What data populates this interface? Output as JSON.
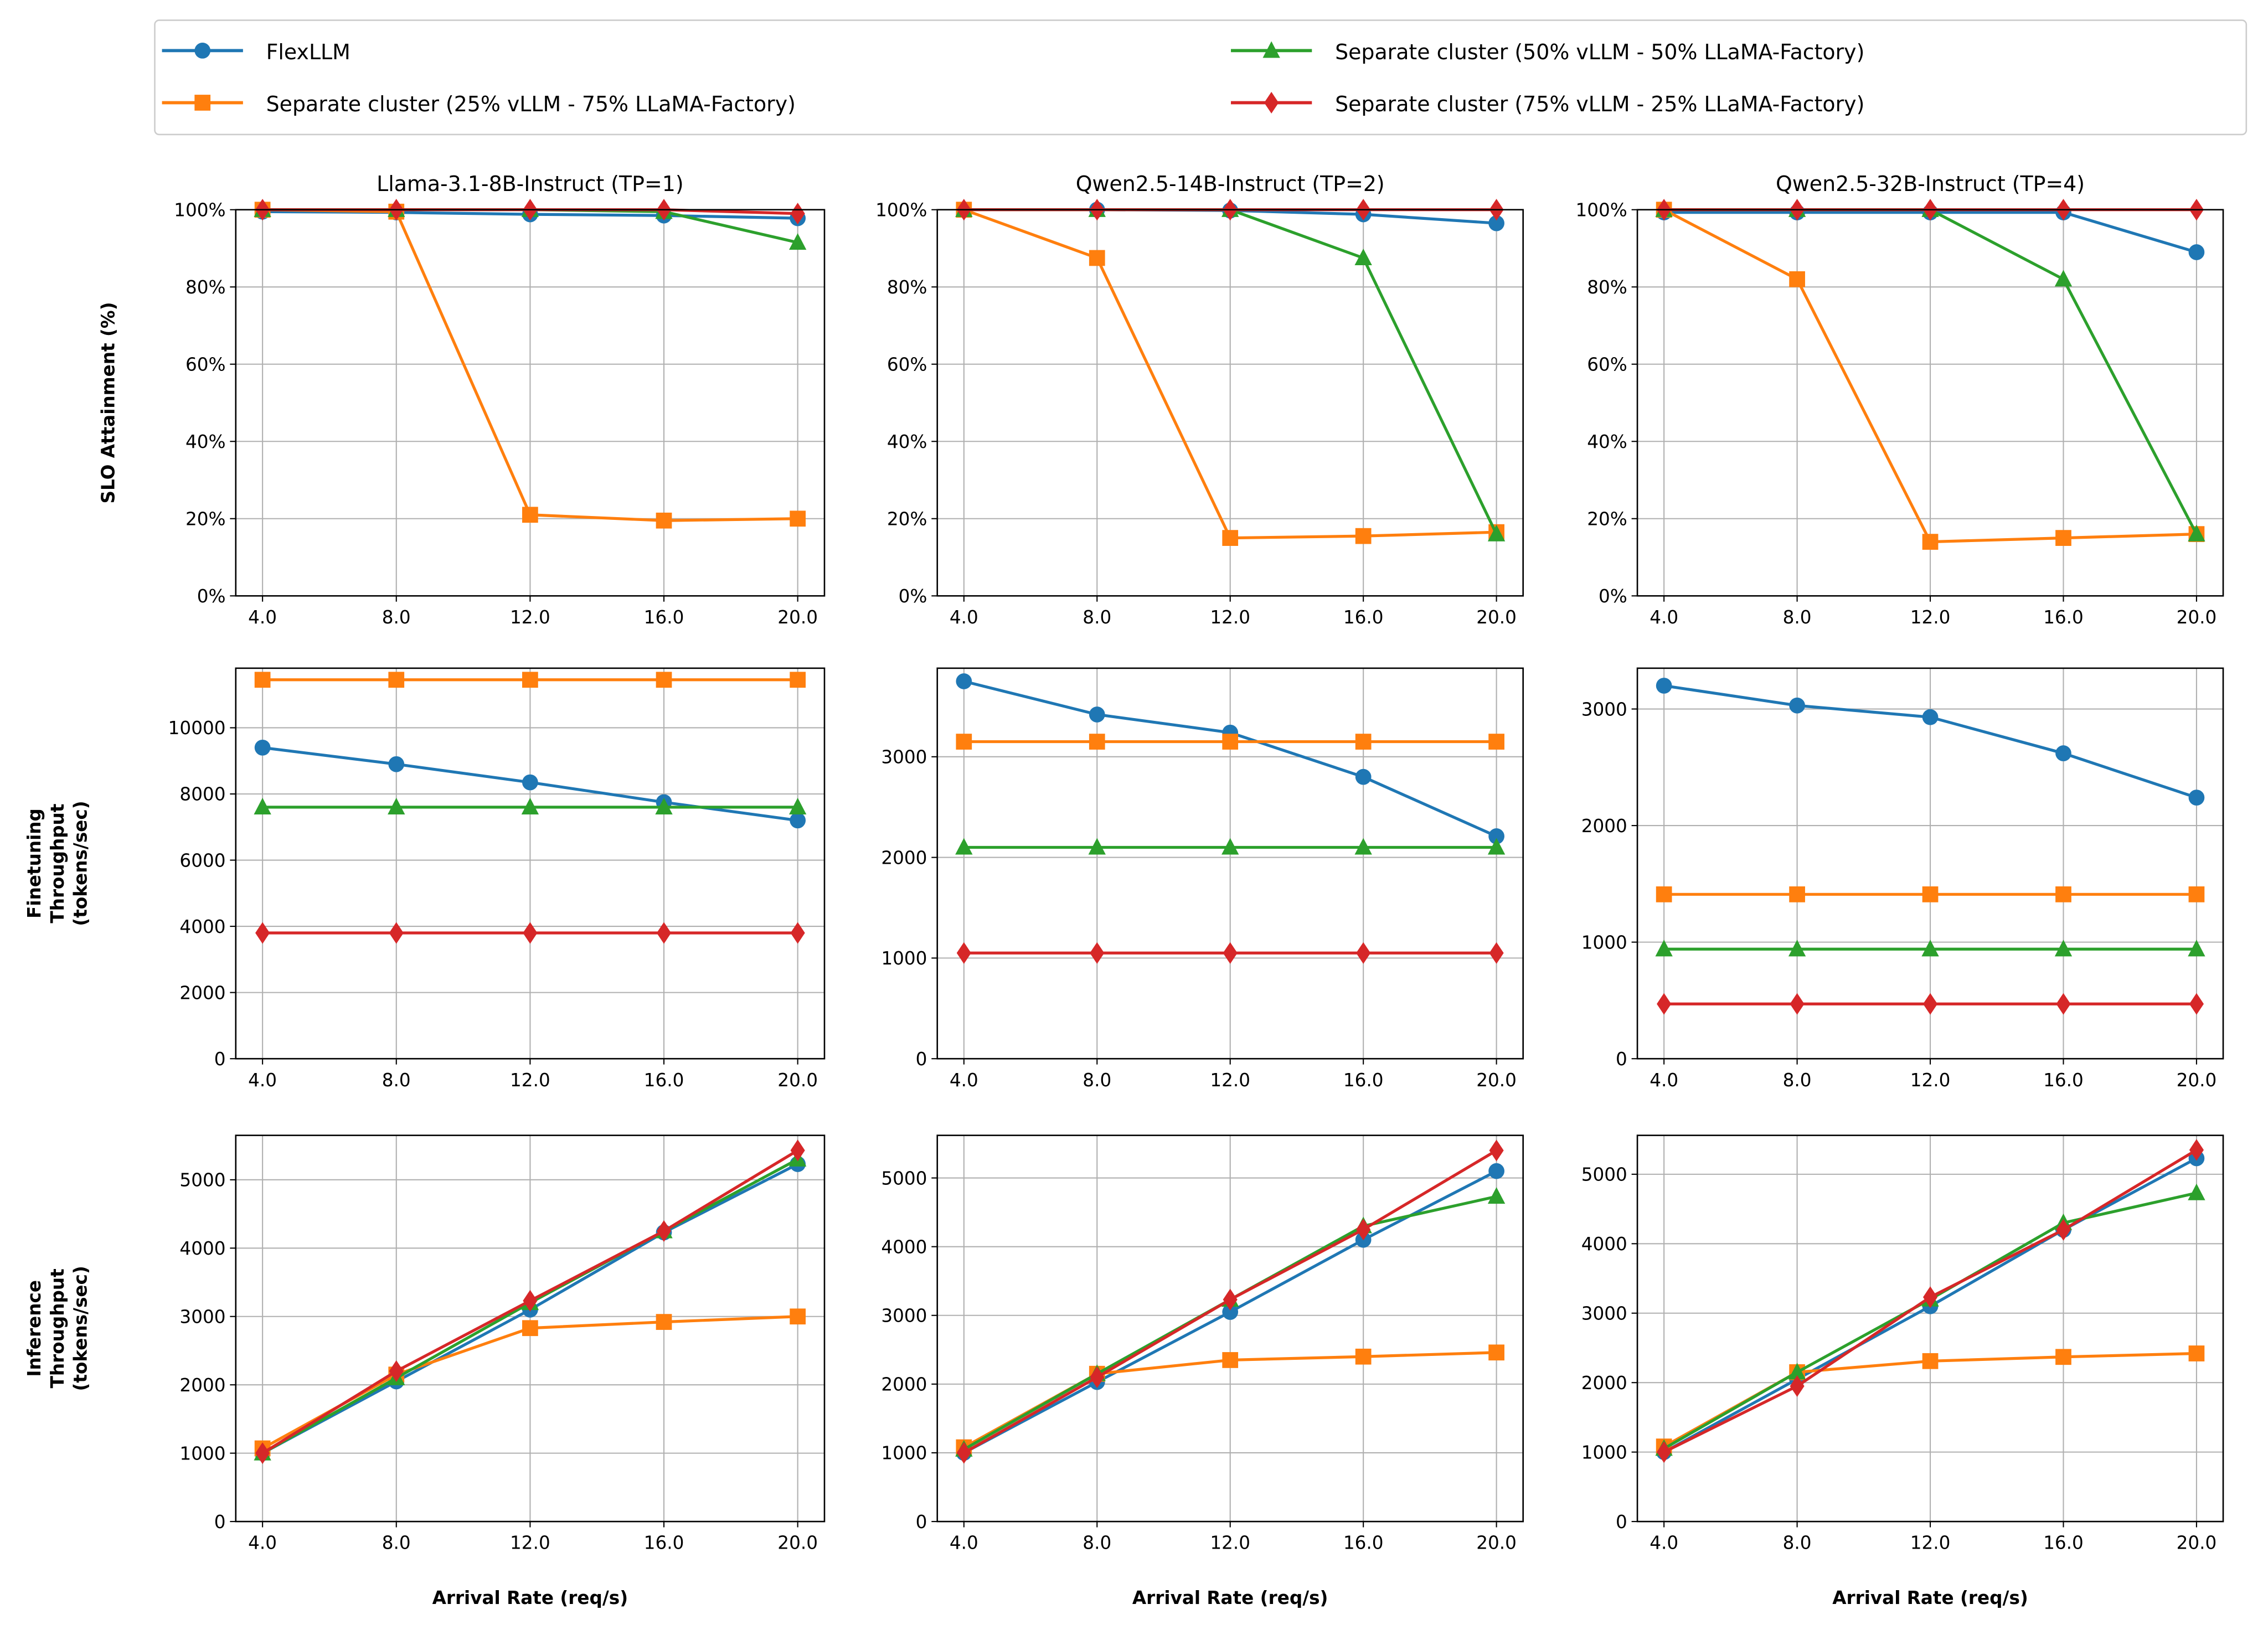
{
  "chart_data": {
    "type": "line",
    "x": [
      4.0,
      8.0,
      12.0,
      16.0,
      20.0
    ],
    "xticklabels": [
      "4.0",
      "8.0",
      "12.0",
      "16.0",
      "20.0"
    ],
    "xlabel": "Arrival Rate (req/s)",
    "xlim": [
      3.2,
      20.8
    ],
    "grid": true,
    "legend": {
      "placement": "top-center",
      "entries": [
        {
          "name": "FlexLLM",
          "color": "#1f77b4",
          "marker": "circle"
        },
        {
          "name": "Separate cluster (25% vLLM - 75% LLaMA-Factory)",
          "color": "#ff7f0e",
          "marker": "square"
        },
        {
          "name": "Separate cluster (50% vLLM - 50% LLaMA-Factory)",
          "color": "#2ca02c",
          "marker": "triangle"
        },
        {
          "name": "Separate cluster (75% vLLM - 25% LLaMA-Factory)",
          "color": "#d62728",
          "marker": "diamond"
        }
      ]
    },
    "column_titles": [
      "Llama-3.1-8B-Instruct (TP=1)",
      "Qwen2.5-14B-Instruct (TP=2)",
      "Qwen2.5-32B-Instruct (TP=4)"
    ],
    "row_ylabels": [
      [
        "SLO Attainment (%)"
      ],
      [
        "Finetuning",
        "Throughput",
        "(tokens/sec)"
      ],
      [
        "Inference",
        "Throughput",
        "(tokens/sec)"
      ]
    ],
    "panels": [
      [
        {
          "ylim": [
            0,
            100
          ],
          "yticks": [
            0,
            20,
            40,
            60,
            80,
            100
          ],
          "ytick_suffix": "%",
          "series": [
            [
              99.5,
              99.3,
              98.8,
              98.5,
              97.8
            ],
            [
              100,
              99.5,
              21,
              19.5,
              20
            ],
            [
              100,
              100,
              100,
              99.5,
              91.5
            ],
            [
              100,
              100,
              100,
              100,
              99
            ]
          ]
        },
        {
          "ylim": [
            0,
            100
          ],
          "yticks": [
            0,
            20,
            40,
            60,
            80,
            100
          ],
          "ytick_suffix": "%",
          "series": [
            [
              100,
              100,
              99.8,
              98.8,
              96.5
            ],
            [
              100,
              87.5,
              15,
              15.5,
              16.5
            ],
            [
              100,
              100,
              100,
              87.5,
              16
            ],
            [
              100,
              100,
              100,
              100,
              100
            ]
          ]
        },
        {
          "ylim": [
            0,
            100
          ],
          "yticks": [
            0,
            20,
            40,
            60,
            80,
            100
          ],
          "ytick_suffix": "%",
          "series": [
            [
              99.3,
              99.3,
              99.3,
              99.3,
              89
            ],
            [
              100,
              82,
              14,
              15,
              16
            ],
            [
              100,
              100,
              100,
              82,
              16
            ],
            [
              100,
              100,
              100,
              100,
              100
            ]
          ]
        }
      ],
      [
        {
          "ylim": [
            0,
            11800
          ],
          "yticks": [
            0,
            2000,
            4000,
            6000,
            8000,
            10000
          ],
          "ytick_suffix": "",
          "series": [
            [
              9400,
              8900,
              8350,
              7750,
              7200
            ],
            [
              11450,
              11450,
              11450,
              11450,
              11450
            ],
            [
              7600,
              7600,
              7600,
              7600,
              7600
            ],
            [
              3800,
              3800,
              3800,
              3800,
              3800
            ]
          ]
        },
        {
          "ylim": [
            0,
            3880
          ],
          "yticks": [
            0,
            1000,
            2000,
            3000
          ],
          "ytick_suffix": "",
          "series": [
            [
              3750,
              3420,
              3240,
              2800,
              2210
            ],
            [
              3150,
              3150,
              3150,
              3150,
              3150
            ],
            [
              2100,
              2100,
              2100,
              2100,
              2100
            ],
            [
              1050,
              1050,
              1050,
              1050,
              1050
            ]
          ]
        },
        {
          "ylim": [
            0,
            3350
          ],
          "yticks": [
            0,
            1000,
            2000,
            3000
          ],
          "ytick_suffix": "",
          "series": [
            [
              3200,
              3030,
              2930,
              2620,
              2240
            ],
            [
              1410,
              1410,
              1410,
              1410,
              1410
            ],
            [
              940,
              940,
              940,
              940,
              940
            ],
            [
              470,
              470,
              470,
              470,
              470
            ]
          ]
        }
      ],
      [
        {
          "ylim": [
            0,
            5650
          ],
          "yticks": [
            0,
            1000,
            2000,
            3000,
            4000,
            5000
          ],
          "ytick_suffix": "",
          "series": [
            [
              1000,
              2050,
              3100,
              4230,
              5230
            ],
            [
              1070,
              2150,
              2830,
              2920,
              3000
            ],
            [
              1000,
              2100,
              3200,
              4250,
              5300
            ],
            [
              1000,
              2200,
              3230,
              4250,
              5430
            ]
          ]
        },
        {
          "ylim": [
            0,
            5620
          ],
          "yticks": [
            0,
            1000,
            2000,
            3000,
            4000,
            5000
          ],
          "ytick_suffix": "",
          "series": [
            [
              1000,
              2030,
              3050,
              4100,
              5100
            ],
            [
              1080,
              2150,
              2350,
              2400,
              2460
            ],
            [
              1050,
              2150,
              3230,
              4300,
              4730
            ],
            [
              1000,
              2100,
              3230,
              4250,
              5400
            ]
          ]
        },
        {
          "ylim": [
            0,
            5560
          ],
          "yticks": [
            0,
            1000,
            2000,
            3000,
            4000,
            5000
          ],
          "ytick_suffix": "",
          "series": [
            [
              1000,
              2050,
              3100,
              4200,
              5230
            ],
            [
              1080,
              2150,
              2310,
              2370,
              2420
            ],
            [
              1050,
              2150,
              3200,
              4300,
              4730
            ],
            [
              1000,
              1950,
              3230,
              4200,
              5350
            ]
          ]
        }
      ]
    ]
  }
}
